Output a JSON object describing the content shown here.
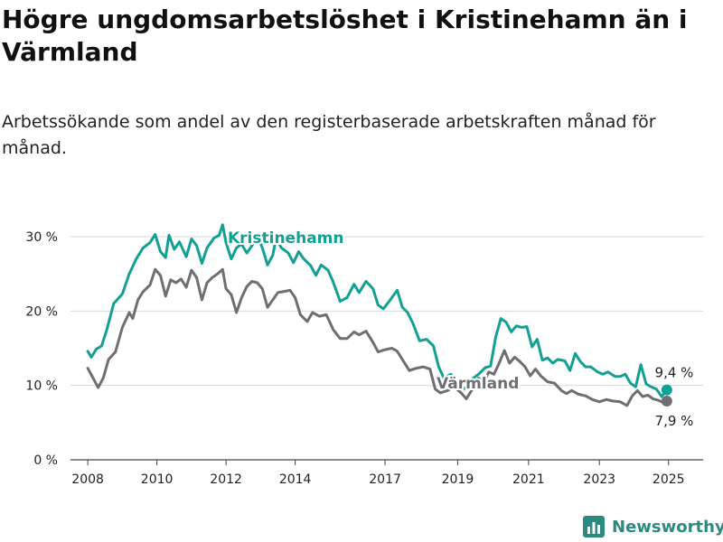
{
  "title": "Högre ungdomsarbetslöshet i Kristinehamn än i Värmland",
  "subtitle": "Arbetssökande som andel av den registerbaserade arbetskraften månad för månad.",
  "brand": {
    "name": "Newsworthy",
    "color": "#2d8a7e",
    "icon": "bar-chart-logo-icon"
  },
  "chart_data": {
    "type": "line",
    "title": "Högre ungdomsarbetslöshet i Kristinehamn än i Värmland",
    "subtitle": "Arbetssökande som andel av den registerbaserade arbetskraften månad för månad.",
    "xlabel": "",
    "ylabel": "",
    "x_ticks": [
      "2008",
      "2010",
      "2012",
      "2014",
      "2017",
      "2019",
      "2021",
      "2023",
      "2025"
    ],
    "x_tick_values": [
      2008.0,
      2010.0,
      2012.0,
      2014.0,
      2016.6,
      2018.7,
      2020.75,
      2022.8,
      2024.8
    ],
    "y_ticks": [
      "0 %",
      "10 %",
      "20 %",
      "30 %"
    ],
    "y_tick_values": [
      0,
      10,
      20,
      30
    ],
    "ylim": [
      0,
      30
    ],
    "xlim": [
      2007.5,
      2025.8
    ],
    "grid": "horizontal",
    "legend": "inline labels",
    "series": [
      {
        "name": "Kristinehamn",
        "color": "#13a094",
        "end_label": "9,4 %",
        "points": [
          [
            2008.0,
            14.6
          ],
          [
            2008.1,
            13.8
          ],
          [
            2008.25,
            14.9
          ],
          [
            2008.4,
            15.3
          ],
          [
            2008.55,
            17.5
          ],
          [
            2008.75,
            21.0
          ],
          [
            2009.0,
            22.3
          ],
          [
            2009.2,
            25.0
          ],
          [
            2009.4,
            27.0
          ],
          [
            2009.6,
            28.5
          ],
          [
            2009.8,
            29.2
          ],
          [
            2009.95,
            30.3
          ],
          [
            2010.1,
            28.0
          ],
          [
            2010.25,
            27.2
          ],
          [
            2010.35,
            30.2
          ],
          [
            2010.5,
            28.3
          ],
          [
            2010.65,
            29.3
          ],
          [
            2010.85,
            27.3
          ],
          [
            2011.0,
            29.7
          ],
          [
            2011.15,
            28.8
          ],
          [
            2011.3,
            26.4
          ],
          [
            2011.45,
            28.5
          ],
          [
            2011.65,
            29.8
          ],
          [
            2011.8,
            30.2
          ],
          [
            2011.9,
            31.6
          ],
          [
            2012.0,
            29.2
          ],
          [
            2012.15,
            27.0
          ],
          [
            2012.3,
            28.5
          ],
          [
            2012.45,
            29.0
          ],
          [
            2012.6,
            27.8
          ],
          [
            2012.75,
            28.8
          ],
          [
            2012.9,
            30.2
          ],
          [
            2013.05,
            28.5
          ],
          [
            2013.2,
            26.2
          ],
          [
            2013.35,
            27.5
          ],
          [
            2013.45,
            29.8
          ],
          [
            2013.6,
            28.5
          ],
          [
            2013.8,
            27.8
          ],
          [
            2013.95,
            26.5
          ],
          [
            2014.1,
            28.0
          ],
          [
            2014.25,
            27.0
          ],
          [
            2014.45,
            26.1
          ],
          [
            2014.6,
            24.8
          ],
          [
            2014.75,
            26.2
          ],
          [
            2014.95,
            25.5
          ],
          [
            2015.1,
            23.9
          ],
          [
            2015.3,
            21.3
          ],
          [
            2015.5,
            21.8
          ],
          [
            2015.7,
            23.6
          ],
          [
            2015.85,
            22.5
          ],
          [
            2016.05,
            24.0
          ],
          [
            2016.25,
            23.0
          ],
          [
            2016.4,
            20.8
          ],
          [
            2016.55,
            20.3
          ],
          [
            2016.75,
            21.5
          ],
          [
            2016.95,
            22.8
          ],
          [
            2017.1,
            20.5
          ],
          [
            2017.25,
            19.8
          ],
          [
            2017.4,
            18.4
          ],
          [
            2017.6,
            16.0
          ],
          [
            2017.8,
            16.2
          ],
          [
            2018.0,
            15.3
          ],
          [
            2018.15,
            12.5
          ],
          [
            2018.3,
            11.0
          ],
          [
            2018.5,
            11.5
          ],
          [
            2018.7,
            10.2
          ],
          [
            2018.9,
            9.5
          ],
          [
            2019.1,
            10.8
          ],
          [
            2019.3,
            11.5
          ],
          [
            2019.5,
            12.4
          ],
          [
            2019.65,
            12.6
          ],
          [
            2019.8,
            16.5
          ],
          [
            2019.95,
            19.0
          ],
          [
            2020.1,
            18.5
          ],
          [
            2020.25,
            17.2
          ],
          [
            2020.4,
            18.0
          ],
          [
            2020.55,
            17.8
          ],
          [
            2020.7,
            17.9
          ],
          [
            2020.85,
            15.2
          ],
          [
            2021.0,
            16.2
          ],
          [
            2021.15,
            13.4
          ],
          [
            2021.3,
            13.7
          ],
          [
            2021.45,
            13.0
          ],
          [
            2021.6,
            13.5
          ],
          [
            2021.8,
            13.3
          ],
          [
            2021.95,
            12.0
          ],
          [
            2022.1,
            14.3
          ],
          [
            2022.25,
            13.2
          ],
          [
            2022.4,
            12.5
          ],
          [
            2022.55,
            12.5
          ],
          [
            2022.75,
            11.8
          ],
          [
            2022.9,
            11.5
          ],
          [
            2023.05,
            11.8
          ],
          [
            2023.25,
            11.2
          ],
          [
            2023.4,
            11.2
          ],
          [
            2023.55,
            11.5
          ],
          [
            2023.7,
            10.3
          ],
          [
            2023.85,
            9.8
          ],
          [
            2024.0,
            12.8
          ],
          [
            2024.15,
            10.2
          ],
          [
            2024.3,
            9.8
          ],
          [
            2024.45,
            9.5
          ],
          [
            2024.6,
            8.5
          ],
          [
            2024.75,
            9.4
          ]
        ]
      },
      {
        "name": "Värmland",
        "color": "#6e6e73",
        "end_label": "7,9 %",
        "points": [
          [
            2008.0,
            12.3
          ],
          [
            2008.15,
            11.0
          ],
          [
            2008.3,
            9.7
          ],
          [
            2008.45,
            11.0
          ],
          [
            2008.6,
            13.5
          ],
          [
            2008.8,
            14.5
          ],
          [
            2009.0,
            17.8
          ],
          [
            2009.2,
            19.8
          ],
          [
            2009.3,
            19.0
          ],
          [
            2009.45,
            21.5
          ],
          [
            2009.6,
            22.6
          ],
          [
            2009.8,
            23.5
          ],
          [
            2009.95,
            25.6
          ],
          [
            2010.1,
            24.8
          ],
          [
            2010.25,
            22.0
          ],
          [
            2010.4,
            24.2
          ],
          [
            2010.55,
            23.8
          ],
          [
            2010.7,
            24.3
          ],
          [
            2010.85,
            23.2
          ],
          [
            2011.0,
            25.5
          ],
          [
            2011.15,
            24.5
          ],
          [
            2011.3,
            21.5
          ],
          [
            2011.45,
            23.8
          ],
          [
            2011.6,
            24.5
          ],
          [
            2011.75,
            25.0
          ],
          [
            2011.9,
            25.6
          ],
          [
            2012.0,
            23.0
          ],
          [
            2012.15,
            22.2
          ],
          [
            2012.3,
            19.8
          ],
          [
            2012.45,
            21.8
          ],
          [
            2012.6,
            23.3
          ],
          [
            2012.75,
            24.0
          ],
          [
            2012.9,
            23.8
          ],
          [
            2013.05,
            23.0
          ],
          [
            2013.2,
            20.5
          ],
          [
            2013.35,
            21.5
          ],
          [
            2013.5,
            22.5
          ],
          [
            2013.65,
            22.6
          ],
          [
            2013.85,
            22.8
          ],
          [
            2014.0,
            21.8
          ],
          [
            2014.15,
            19.5
          ],
          [
            2014.35,
            18.6
          ],
          [
            2014.5,
            19.8
          ],
          [
            2014.7,
            19.3
          ],
          [
            2014.9,
            19.5
          ],
          [
            2015.1,
            17.5
          ],
          [
            2015.3,
            16.3
          ],
          [
            2015.5,
            16.3
          ],
          [
            2015.7,
            17.2
          ],
          [
            2015.85,
            16.8
          ],
          [
            2016.05,
            17.3
          ],
          [
            2016.25,
            15.8
          ],
          [
            2016.4,
            14.5
          ],
          [
            2016.6,
            14.8
          ],
          [
            2016.8,
            15.0
          ],
          [
            2016.95,
            14.6
          ],
          [
            2017.1,
            13.5
          ],
          [
            2017.3,
            12.0
          ],
          [
            2017.5,
            12.3
          ],
          [
            2017.7,
            12.5
          ],
          [
            2017.9,
            12.2
          ],
          [
            2018.05,
            9.5
          ],
          [
            2018.2,
            9.0
          ],
          [
            2018.4,
            9.3
          ],
          [
            2018.6,
            9.8
          ],
          [
            2018.8,
            9.0
          ],
          [
            2018.95,
            8.2
          ],
          [
            2019.1,
            9.3
          ],
          [
            2019.3,
            11.0
          ],
          [
            2019.45,
            10.3
          ],
          [
            2019.6,
            11.8
          ],
          [
            2019.75,
            11.5
          ],
          [
            2019.9,
            13.0
          ],
          [
            2020.05,
            14.7
          ],
          [
            2020.2,
            13.0
          ],
          [
            2020.35,
            13.8
          ],
          [
            2020.5,
            13.2
          ],
          [
            2020.65,
            12.5
          ],
          [
            2020.8,
            11.3
          ],
          [
            2020.95,
            12.2
          ],
          [
            2021.1,
            11.3
          ],
          [
            2021.3,
            10.5
          ],
          [
            2021.5,
            10.3
          ],
          [
            2021.7,
            9.3
          ],
          [
            2021.85,
            8.9
          ],
          [
            2022.0,
            9.3
          ],
          [
            2022.2,
            8.8
          ],
          [
            2022.4,
            8.6
          ],
          [
            2022.6,
            8.1
          ],
          [
            2022.8,
            7.8
          ],
          [
            2023.0,
            8.1
          ],
          [
            2023.2,
            7.9
          ],
          [
            2023.4,
            7.8
          ],
          [
            2023.6,
            7.3
          ],
          [
            2023.75,
            8.6
          ],
          [
            2023.9,
            9.3
          ],
          [
            2024.05,
            8.5
          ],
          [
            2024.2,
            8.7
          ],
          [
            2024.35,
            8.2
          ],
          [
            2024.5,
            8.0
          ],
          [
            2024.65,
            7.7
          ],
          [
            2024.75,
            7.9
          ]
        ]
      }
    ]
  }
}
